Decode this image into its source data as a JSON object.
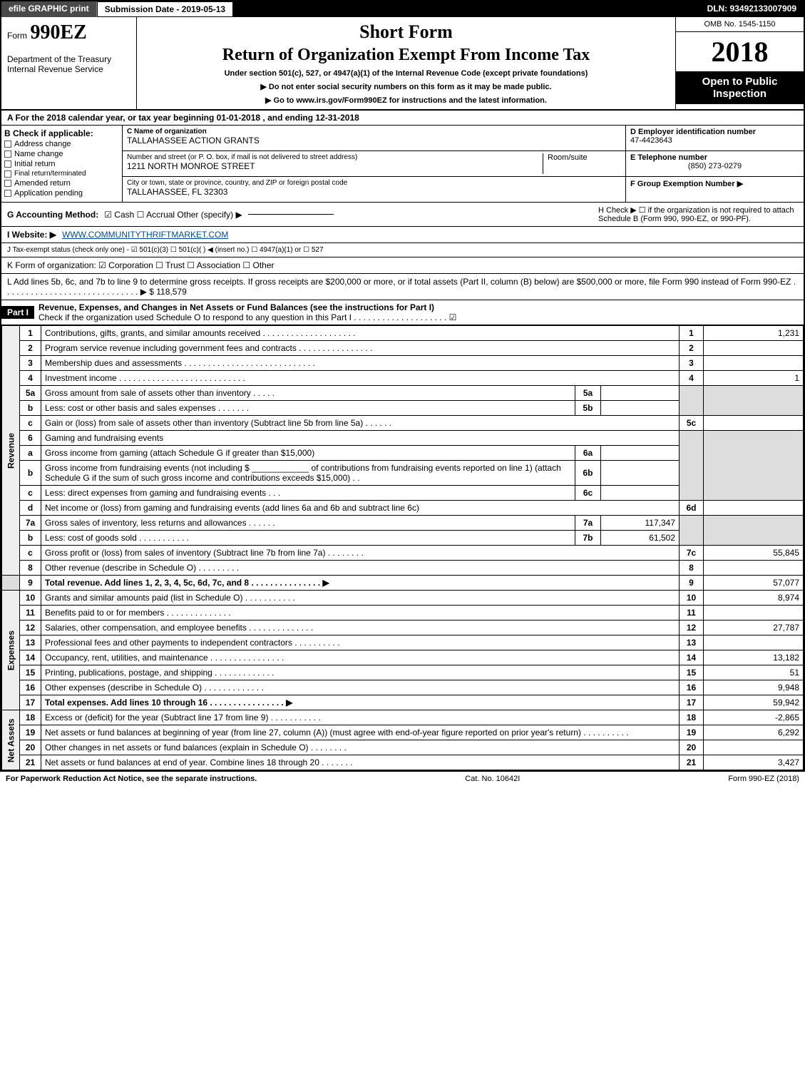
{
  "topbar": {
    "efile": "efile GRAPHIC print",
    "submission_label": "Submission Date - 2019-05-13",
    "dln": "DLN: 93492133007909"
  },
  "header": {
    "form_prefix": "Form",
    "form_number": "990EZ",
    "dept1": "Department of the Treasury",
    "dept2": "Internal Revenue Service",
    "short_form": "Short Form",
    "return_title": "Return of Organization Exempt From Income Tax",
    "under": "Under section 501(c), 527, or 4947(a)(1) of the Internal Revenue Code (except private foundations)",
    "warn": "▶ Do not enter social security numbers on this form as it may be made public.",
    "goto": "▶ Go to www.irs.gov/Form990EZ for instructions and the latest information.",
    "omb": "OMB No. 1545-1150",
    "year": "2018",
    "open1": "Open to Public",
    "open2": "Inspection"
  },
  "sectionA": {
    "text_pre": "A  For the 2018 calendar year, or tax year beginning ",
    "beg": "01-01-2018",
    "mid": " , and ending ",
    "end": "12-31-2018"
  },
  "boxB": {
    "title": "B  Check if applicable:",
    "items": [
      "Address change",
      "Name change",
      "Initial return",
      "Final return/terminated",
      "Amended return",
      "Application pending"
    ]
  },
  "boxC": {
    "label_name": "C Name of organization",
    "name": "TALLAHASSEE ACTION GRANTS",
    "label_addr": "Number and street (or P. O. box, if mail is not delivered to street address)",
    "addr": "1211 NORTH MONROE STREET",
    "room_label": "Room/suite",
    "label_city": "City or town, state or province, country, and ZIP or foreign postal code",
    "city": "TALLAHASSEE, FL  32303"
  },
  "boxD": {
    "label": "D Employer identification number",
    "ein": "47-4423643",
    "elabel": "E Telephone number",
    "phone": "(850) 273-0279",
    "flabel": "F Group Exemption Number  ▶"
  },
  "rowG": {
    "label": "G Accounting Method:",
    "opts": "☑ Cash   ☐ Accrual   Other (specify) ▶",
    "h_label": "H  Check ▶ ☐  if the organization is not required to attach Schedule B (Form 990, 990-EZ, or 990-PF)."
  },
  "rowI": {
    "label": "I Website: ▶",
    "url": "WWW.COMMUNITYTHRIFTMARKET.COM"
  },
  "rowJ": {
    "text": "J Tax-exempt status (check only one) -  ☑ 501(c)(3)  ☐ 501(c)(  ) ◀ (insert no.)  ☐ 4947(a)(1) or  ☐ 527"
  },
  "rowK": {
    "text": "K Form of organization:   ☑ Corporation   ☐ Trust   ☐ Association   ☐ Other"
  },
  "rowL": {
    "text": "L Add lines 5b, 6c, and 7b to line 9 to determine gross receipts. If gross receipts are $200,000 or more, or if total assets (Part II, column (B) below) are $500,000 or more, file Form 990 instead of Form 990-EZ  .  .  .  .  .  .  .  .  .  .  .  .  .  .  .  .  .  .  .  .  .  .  .  .  .  .  .  .  .  ▶ $ 118,579"
  },
  "part1": {
    "label": "Part I",
    "title": "Revenue, Expenses, and Changes in Net Assets or Fund Balances (see the instructions for Part I)",
    "check": "Check if the organization used Schedule O to respond to any question in this Part I .  .  .  .  .  .  .  .  .  .  .  .  .  .  .  .  .  .  .  .   ☑"
  },
  "side_labels": {
    "revenue": "Revenue",
    "expenses": "Expenses",
    "netassets": "Net Assets"
  },
  "lines": {
    "l1": {
      "n": "1",
      "d": "Contributions, gifts, grants, and similar amounts received  .  .  .  .  .  .  .  .  .  .  .  .  .  .  .  .  .  .  .  .",
      "rn": "1",
      "amt": "1,231"
    },
    "l2": {
      "n": "2",
      "d": "Program service revenue including government fees and contracts  .  .  .  .  .  .  .  .  .  .  .  .  .  .  .  .",
      "rn": "2",
      "amt": ""
    },
    "l3": {
      "n": "3",
      "d": "Membership dues and assessments  .  .  .  .  .  .  .  .  .  .  .  .  .  .  .  .  .  .  .  .  .  .  .  .  .  .  .  .",
      "rn": "3",
      "amt": ""
    },
    "l4": {
      "n": "4",
      "d": "Investment income  .  .  .  .  .  .  .  .  .  .  .  .  .  .  .  .  .  .  .  .  .  .  .  .  .  .  .",
      "rn": "4",
      "amt": "1"
    },
    "l5a": {
      "n": "5a",
      "d": "Gross amount from sale of assets other than inventory  .  .  .  .  .",
      "mn": "5a",
      "mamt": ""
    },
    "l5b": {
      "n": "b",
      "d": "Less: cost or other basis and sales expenses  .  .  .  .  .  .  .",
      "mn": "5b",
      "mamt": ""
    },
    "l5c": {
      "n": "c",
      "d": "Gain or (loss) from sale of assets other than inventory (Subtract line 5b from line 5a)       .   .   .   .   .   .",
      "rn": "5c",
      "amt": ""
    },
    "l6": {
      "n": "6",
      "d": "Gaming and fundraising events"
    },
    "l6a": {
      "n": "a",
      "d": "Gross income from gaming (attach Schedule G if greater than $15,000)",
      "mn": "6a",
      "mamt": ""
    },
    "l6b": {
      "n": "b",
      "d": "Gross income from fundraising events (not including $ ____________ of contributions from fundraising events reported on line 1) (attach Schedule G if the sum of such gross income and contributions exceeds $15,000)   .   .",
      "mn": "6b",
      "mamt": ""
    },
    "l6c": {
      "n": "c",
      "d": "Less: direct expenses from gaming and fundraising events     .   .   .",
      "mn": "6c",
      "mamt": ""
    },
    "l6d": {
      "n": "d",
      "d": "Net income or (loss) from gaming and fundraising events (add lines 6a and 6b and subtract line 6c)",
      "rn": "6d",
      "amt": ""
    },
    "l7a": {
      "n": "7a",
      "d": "Gross sales of inventory, less returns and allowances     .   .   .   .   .   .",
      "mn": "7a",
      "mamt": "117,347"
    },
    "l7b": {
      "n": "b",
      "d": "Less: cost of goods sold            .   .   .   .   .   .   .   .   .   .   .",
      "mn": "7b",
      "mamt": "61,502"
    },
    "l7c": {
      "n": "c",
      "d": "Gross profit or (loss) from sales of inventory (Subtract line 7b from line 7a)       .   .   .   .   .   .   .   .",
      "rn": "7c",
      "amt": "55,845"
    },
    "l8": {
      "n": "8",
      "d": "Other revenue (describe in Schedule O)          .   .   .   .   .   .   .   .   .",
      "rn": "8",
      "amt": ""
    },
    "l9": {
      "n": "9",
      "d": "Total revenue. Add lines 1, 2, 3, 4, 5c, 6d, 7c, and 8    .   .   .   .   .   .   .   .   .   .   .   .   .   .   .   ▶",
      "rn": "9",
      "amt": "57,077"
    },
    "l10": {
      "n": "10",
      "d": "Grants and similar amounts paid (list in Schedule O)       .   .   .   .   .   .   .   .   .   .   .",
      "rn": "10",
      "amt": "8,974"
    },
    "l11": {
      "n": "11",
      "d": "Benefits paid to or for members        .   .   .   .   .   .   .   .   .   .   .   .   .   .",
      "rn": "11",
      "amt": ""
    },
    "l12": {
      "n": "12",
      "d": "Salaries, other compensation, and employee benefits     .   .   .   .   .   .   .   .   .   .   .   .   .   .",
      "rn": "12",
      "amt": "27,787"
    },
    "l13": {
      "n": "13",
      "d": "Professional fees and other payments to independent contractors     .   .   .   .   .   .   .   .   .   .",
      "rn": "13",
      "amt": ""
    },
    "l14": {
      "n": "14",
      "d": "Occupancy, rent, utilities, and maintenance    .   .   .   .   .   .   .   .   .   .   .   .   .   .   .   .",
      "rn": "14",
      "amt": "13,182"
    },
    "l15": {
      "n": "15",
      "d": "Printing, publications, postage, and shipping      .   .   .   .   .   .   .   .   .   .   .   .   .",
      "rn": "15",
      "amt": "51"
    },
    "l16": {
      "n": "16",
      "d": "Other expenses (describe in Schedule O)       .   .   .   .   .   .   .   .   .   .   .   .   .",
      "rn": "16",
      "amt": "9,948"
    },
    "l17": {
      "n": "17",
      "d": "Total expenses. Add lines 10 through 16     .   .   .   .   .   .   .   .   .   .   .   .   .   .   .   .   ▶",
      "rn": "17",
      "amt": "59,942"
    },
    "l18": {
      "n": "18",
      "d": "Excess or (deficit) for the year (Subtract line 17 from line 9)      .   .   .   .   .   .   .   .   .   .   .",
      "rn": "18",
      "amt": "-2,865"
    },
    "l19": {
      "n": "19",
      "d": "Net assets or fund balances at beginning of year (from line 27, column (A)) (must agree with end-of-year figure reported on prior year's return)       .   .   .   .   .   .   .   .   .   .",
      "rn": "19",
      "amt": "6,292"
    },
    "l20": {
      "n": "20",
      "d": "Other changes in net assets or fund balances (explain in Schedule O)      .   .   .   .   .   .   .   .",
      "rn": "20",
      "amt": ""
    },
    "l21": {
      "n": "21",
      "d": "Net assets or fund balances at end of year. Combine lines 18 through 20       .   .   .   .   .   .   .",
      "rn": "21",
      "amt": "3,427"
    }
  },
  "footer": {
    "left": "For Paperwork Reduction Act Notice, see the separate instructions.",
    "mid": "Cat. No. 10642I",
    "right": "Form 990-EZ (2018)"
  },
  "colors": {
    "black": "#000000",
    "grey_cell": "#dddddd",
    "link": "#004b9b"
  }
}
